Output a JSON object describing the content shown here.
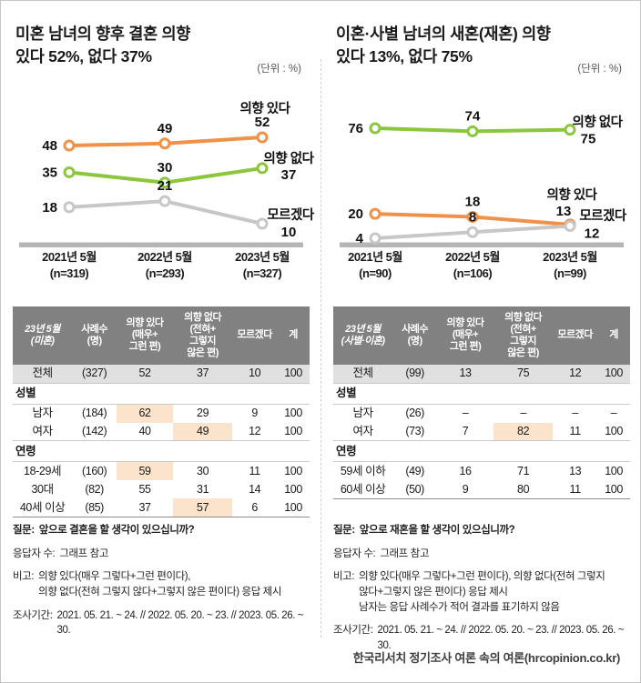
{
  "page": {
    "footer": "한국리서치 정기조사 여론 속의 여론(hrcopinion.co.kr)"
  },
  "chart_data": [
    {
      "type": "line",
      "title": "미혼 남녀의 향후 결혼 의향 있다 52%, 없다 37%",
      "unit": "%",
      "grid": false,
      "legend_position": "right-inline",
      "ylim": [
        0,
        100
      ],
      "categories": [
        "2021년 5월",
        "2022년 5월",
        "2023년 5월"
      ],
      "category_sublabels": [
        "(n=319)",
        "(n=293)",
        "(n=327)"
      ],
      "series": [
        {
          "name": "의향 있다",
          "color": "#F0914A",
          "values": [
            48,
            49,
            52
          ]
        },
        {
          "name": "의향 없다",
          "color": "#8CC63F",
          "values": [
            35,
            30,
            37
          ]
        },
        {
          "name": "모르겠다",
          "color": "#C7C7C7",
          "values": [
            18,
            21,
            10
          ]
        }
      ]
    },
    {
      "type": "line",
      "title": "이혼·사별 남녀의 새혼(재혼) 의향 있다 13%, 없다 75%",
      "unit": "%",
      "grid": false,
      "legend_position": "right-inline",
      "ylim": [
        0,
        100
      ],
      "categories": [
        "2021년 5월",
        "2022년 5월",
        "2023년 5월"
      ],
      "category_sublabels": [
        "(n=90)",
        "(n=106)",
        "(n=99)"
      ],
      "series": [
        {
          "name": "의향 있다",
          "color": "#F0914A",
          "values": [
            20,
            18,
            13
          ]
        },
        {
          "name": "의향 없다",
          "color": "#8CC63F",
          "values": [
            76,
            74,
            75
          ]
        },
        {
          "name": "모르겠다",
          "color": "#C7C7C7",
          "values": [
            4,
            8,
            12
          ]
        }
      ]
    }
  ],
  "panels": [
    {
      "title_line1": "미혼 남녀의 향후 결혼 의향",
      "title_line2": "있다 52%, 없다 37%",
      "unit_label": "(단위 : %)",
      "table": {
        "header": [
          "23년 5월\n(미혼)",
          "사례수\n(명)",
          "의향 있다\n(매우+\n그런 편)",
          "의향 없다\n(전혀+\n그렇지\n않은 편)",
          "모르겠다",
          "계"
        ],
        "rows": [
          {
            "type": "total",
            "label": "전체",
            "cells": [
              "(327)",
              "52",
              "37",
              "10",
              "100"
            ],
            "highlight": []
          },
          {
            "type": "section",
            "label": "성별"
          },
          {
            "type": "data",
            "label": "남자",
            "cells": [
              "(184)",
              "62",
              "29",
              "9",
              "100"
            ],
            "highlight": [
              1
            ]
          },
          {
            "type": "data",
            "label": "여자",
            "cells": [
              "(142)",
              "40",
              "49",
              "12",
              "100"
            ],
            "highlight": [
              2
            ]
          },
          {
            "type": "section",
            "label": "연령"
          },
          {
            "type": "data",
            "label": "18-29세",
            "cells": [
              "(160)",
              "59",
              "30",
              "11",
              "100"
            ],
            "highlight": [
              1
            ]
          },
          {
            "type": "data",
            "label": "30대",
            "cells": [
              "(82)",
              "55",
              "31",
              "14",
              "100"
            ],
            "highlight": []
          },
          {
            "type": "data",
            "label": "40세 이상",
            "cells": [
              "(85)",
              "37",
              "57",
              "6",
              "100"
            ],
            "highlight": [
              2
            ]
          }
        ]
      },
      "footnotes": [
        {
          "label": "질문:",
          "text": "앞으로 결혼을 할 생각이 있으십니까?",
          "bold": true
        },
        {
          "label": "응답자 수:",
          "text": "그래프 참고"
        },
        {
          "label": "비고:",
          "text": "의향 있다(매우 그렇다+그런 편이다),\n의향 없다(전혀 그렇지 않다+그렇지 않은 편이다) 응답 제시"
        },
        {
          "label": "조사기간:",
          "text": "2021. 05. 21. ~ 24. // 2022. 05. 20. ~ 23. // 2023. 05. 26. ~ 30."
        }
      ]
    },
    {
      "title_line1": "이혼·사별 남녀의 새혼(재혼) 의향",
      "title_line2": "있다 13%, 없다 75%",
      "unit_label": "(단위 : %)",
      "table": {
        "header": [
          "23년 5월\n(사별·이혼)",
          "사례수\n(명)",
          "의향 있다\n(매우+\n그런 편)",
          "의향 없다\n(전혀+\n그렇지\n않은 편)",
          "모르겠다",
          "계"
        ],
        "rows": [
          {
            "type": "total",
            "label": "전체",
            "cells": [
              "(99)",
              "13",
              "75",
              "12",
              "100"
            ],
            "highlight": []
          },
          {
            "type": "section",
            "label": "성별"
          },
          {
            "type": "data",
            "label": "남자",
            "cells": [
              "(26)",
              "–",
              "–",
              "–",
              "–"
            ],
            "highlight": []
          },
          {
            "type": "data",
            "label": "여자",
            "cells": [
              "(73)",
              "7",
              "82",
              "11",
              "100"
            ],
            "highlight": [
              2
            ]
          },
          {
            "type": "section",
            "label": "연령"
          },
          {
            "type": "data",
            "label": "59세 이하",
            "cells": [
              "(49)",
              "16",
              "71",
              "13",
              "100"
            ],
            "highlight": []
          },
          {
            "type": "data",
            "label": "60세 이상",
            "cells": [
              "(50)",
              "9",
              "80",
              "11",
              "100"
            ],
            "highlight": []
          }
        ]
      },
      "footnotes": [
        {
          "label": "질문:",
          "text": "앞으로 재혼을 할 생각이 있으십니까?",
          "bold": true
        },
        {
          "label": "응답자 수:",
          "text": "그래프 참고"
        },
        {
          "label": "비고:",
          "text": "의향 있다(매우 그렇다+그런 편이다), 의향 없다(전혀 그렇지\n않다+그렇지 않은 편이다) 응답 제시\n남자는 응답 사례수가 적어 결과를 표기하지 않음"
        },
        {
          "label": "조사기간:",
          "text": "2021. 05. 21. ~ 24. // 2022. 05. 20. ~ 23. // 2023. 05. 26. ~ 30."
        }
      ]
    }
  ]
}
